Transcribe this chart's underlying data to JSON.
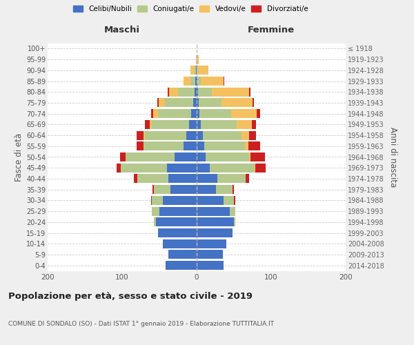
{
  "age_groups": [
    "0-4",
    "5-9",
    "10-14",
    "15-19",
    "20-24",
    "25-29",
    "30-34",
    "35-39",
    "40-44",
    "45-49",
    "50-54",
    "55-59",
    "60-64",
    "65-69",
    "70-74",
    "75-79",
    "80-84",
    "85-89",
    "90-94",
    "95-99",
    "100+"
  ],
  "birth_years": [
    "2014-2018",
    "2009-2013",
    "2004-2008",
    "1999-2003",
    "1994-1998",
    "1989-1993",
    "1984-1988",
    "1979-1983",
    "1974-1978",
    "1969-1973",
    "1964-1968",
    "1959-1963",
    "1954-1958",
    "1949-1953",
    "1944-1948",
    "1939-1943",
    "1934-1938",
    "1929-1933",
    "1924-1928",
    "1919-1923",
    "≤ 1918"
  ],
  "colors": {
    "celibi": "#4472c4",
    "coniugati": "#b5c98e",
    "vedovi": "#f5c060",
    "divorziati": "#cc2020"
  },
  "maschi": {
    "celibi": [
      42,
      38,
      45,
      52,
      55,
      50,
      45,
      35,
      38,
      40,
      30,
      18,
      14,
      10,
      7,
      5,
      3,
      2,
      1,
      0,
      0
    ],
    "coniugati": [
      0,
      0,
      0,
      0,
      2,
      10,
      15,
      22,
      42,
      62,
      65,
      52,
      55,
      50,
      45,
      38,
      22,
      6,
      2,
      0,
      0
    ],
    "vedovi": [
      0,
      0,
      0,
      0,
      0,
      0,
      0,
      0,
      0,
      0,
      0,
      1,
      2,
      3,
      6,
      8,
      12,
      10,
      5,
      1,
      0
    ],
    "divorziati": [
      0,
      0,
      0,
      0,
      0,
      0,
      1,
      2,
      4,
      5,
      8,
      10,
      10,
      6,
      3,
      2,
      2,
      0,
      0,
      0,
      0
    ]
  },
  "femmine": {
    "nubili": [
      36,
      35,
      40,
      48,
      50,
      44,
      36,
      26,
      28,
      18,
      12,
      10,
      8,
      6,
      4,
      3,
      2,
      1,
      0,
      0,
      0
    ],
    "coniugate": [
      0,
      0,
      0,
      0,
      2,
      8,
      14,
      22,
      38,
      60,
      58,
      55,
      52,
      48,
      42,
      30,
      18,
      5,
      2,
      0,
      0
    ],
    "vedove": [
      0,
      0,
      0,
      0,
      0,
      0,
      0,
      0,
      0,
      1,
      2,
      4,
      10,
      20,
      35,
      42,
      50,
      30,
      14,
      3,
      0
    ],
    "divorziate": [
      0,
      0,
      0,
      0,
      0,
      0,
      2,
      2,
      4,
      14,
      20,
      16,
      10,
      6,
      4,
      2,
      2,
      1,
      0,
      0,
      0
    ]
  },
  "title": "Popolazione per età, sesso e stato civile - 2019",
  "subtitle": "COMUNE DI SONDALO (SO) - Dati ISTAT 1° gennaio 2019 - Elaborazione TUTTITALIA.IT",
  "maschi_label": "Maschi",
  "femmine_label": "Femmine",
  "ylabel": "Fasce di età",
  "ylabel_right": "Anni di nascita",
  "xlim": 200,
  "background_color": "#efefef",
  "plot_bg": "#ffffff",
  "legend_labels": [
    "Celibi/Nubili",
    "Coniugati/e",
    "Vedovi/e",
    "Divorziati/e"
  ]
}
